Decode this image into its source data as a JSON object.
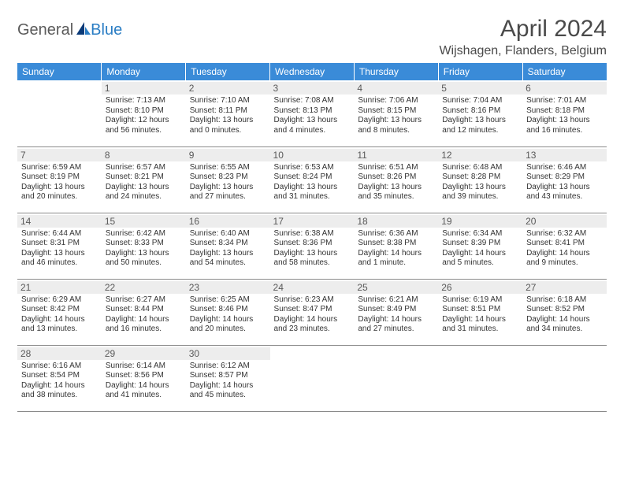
{
  "brand": {
    "part1": "General",
    "part2": "Blue"
  },
  "header": {
    "month": "April 2024",
    "location": "Wijshagen, Flanders, Belgium"
  },
  "colors": {
    "header_bg": "#3a8bd8",
    "header_text": "#ffffff",
    "daynum_bg": "#ededed",
    "daynum_text": "#595959",
    "body_text": "#333333",
    "rule": "#8a8a8a",
    "logo_gray": "#5a5a5a",
    "logo_blue": "#2a7dc4"
  },
  "weekday_labels": [
    "Sunday",
    "Monday",
    "Tuesday",
    "Wednesday",
    "Thursday",
    "Friday",
    "Saturday"
  ],
  "weeks": [
    [
      {
        "n": "",
        "empty": true
      },
      {
        "n": "1",
        "sr": "Sunrise: 7:13 AM",
        "ss": "Sunset: 8:10 PM",
        "d1": "Daylight: 12 hours",
        "d2": "and 56 minutes."
      },
      {
        "n": "2",
        "sr": "Sunrise: 7:10 AM",
        "ss": "Sunset: 8:11 PM",
        "d1": "Daylight: 13 hours",
        "d2": "and 0 minutes."
      },
      {
        "n": "3",
        "sr": "Sunrise: 7:08 AM",
        "ss": "Sunset: 8:13 PM",
        "d1": "Daylight: 13 hours",
        "d2": "and 4 minutes."
      },
      {
        "n": "4",
        "sr": "Sunrise: 7:06 AM",
        "ss": "Sunset: 8:15 PM",
        "d1": "Daylight: 13 hours",
        "d2": "and 8 minutes."
      },
      {
        "n": "5",
        "sr": "Sunrise: 7:04 AM",
        "ss": "Sunset: 8:16 PM",
        "d1": "Daylight: 13 hours",
        "d2": "and 12 minutes."
      },
      {
        "n": "6",
        "sr": "Sunrise: 7:01 AM",
        "ss": "Sunset: 8:18 PM",
        "d1": "Daylight: 13 hours",
        "d2": "and 16 minutes."
      }
    ],
    [
      {
        "n": "7",
        "sr": "Sunrise: 6:59 AM",
        "ss": "Sunset: 8:19 PM",
        "d1": "Daylight: 13 hours",
        "d2": "and 20 minutes."
      },
      {
        "n": "8",
        "sr": "Sunrise: 6:57 AM",
        "ss": "Sunset: 8:21 PM",
        "d1": "Daylight: 13 hours",
        "d2": "and 24 minutes."
      },
      {
        "n": "9",
        "sr": "Sunrise: 6:55 AM",
        "ss": "Sunset: 8:23 PM",
        "d1": "Daylight: 13 hours",
        "d2": "and 27 minutes."
      },
      {
        "n": "10",
        "sr": "Sunrise: 6:53 AM",
        "ss": "Sunset: 8:24 PM",
        "d1": "Daylight: 13 hours",
        "d2": "and 31 minutes."
      },
      {
        "n": "11",
        "sr": "Sunrise: 6:51 AM",
        "ss": "Sunset: 8:26 PM",
        "d1": "Daylight: 13 hours",
        "d2": "and 35 minutes."
      },
      {
        "n": "12",
        "sr": "Sunrise: 6:48 AM",
        "ss": "Sunset: 8:28 PM",
        "d1": "Daylight: 13 hours",
        "d2": "and 39 minutes."
      },
      {
        "n": "13",
        "sr": "Sunrise: 6:46 AM",
        "ss": "Sunset: 8:29 PM",
        "d1": "Daylight: 13 hours",
        "d2": "and 43 minutes."
      }
    ],
    [
      {
        "n": "14",
        "sr": "Sunrise: 6:44 AM",
        "ss": "Sunset: 8:31 PM",
        "d1": "Daylight: 13 hours",
        "d2": "and 46 minutes."
      },
      {
        "n": "15",
        "sr": "Sunrise: 6:42 AM",
        "ss": "Sunset: 8:33 PM",
        "d1": "Daylight: 13 hours",
        "d2": "and 50 minutes."
      },
      {
        "n": "16",
        "sr": "Sunrise: 6:40 AM",
        "ss": "Sunset: 8:34 PM",
        "d1": "Daylight: 13 hours",
        "d2": "and 54 minutes."
      },
      {
        "n": "17",
        "sr": "Sunrise: 6:38 AM",
        "ss": "Sunset: 8:36 PM",
        "d1": "Daylight: 13 hours",
        "d2": "and 58 minutes."
      },
      {
        "n": "18",
        "sr": "Sunrise: 6:36 AM",
        "ss": "Sunset: 8:38 PM",
        "d1": "Daylight: 14 hours",
        "d2": "and 1 minute."
      },
      {
        "n": "19",
        "sr": "Sunrise: 6:34 AM",
        "ss": "Sunset: 8:39 PM",
        "d1": "Daylight: 14 hours",
        "d2": "and 5 minutes."
      },
      {
        "n": "20",
        "sr": "Sunrise: 6:32 AM",
        "ss": "Sunset: 8:41 PM",
        "d1": "Daylight: 14 hours",
        "d2": "and 9 minutes."
      }
    ],
    [
      {
        "n": "21",
        "sr": "Sunrise: 6:29 AM",
        "ss": "Sunset: 8:42 PM",
        "d1": "Daylight: 14 hours",
        "d2": "and 13 minutes."
      },
      {
        "n": "22",
        "sr": "Sunrise: 6:27 AM",
        "ss": "Sunset: 8:44 PM",
        "d1": "Daylight: 14 hours",
        "d2": "and 16 minutes."
      },
      {
        "n": "23",
        "sr": "Sunrise: 6:25 AM",
        "ss": "Sunset: 8:46 PM",
        "d1": "Daylight: 14 hours",
        "d2": "and 20 minutes."
      },
      {
        "n": "24",
        "sr": "Sunrise: 6:23 AM",
        "ss": "Sunset: 8:47 PM",
        "d1": "Daylight: 14 hours",
        "d2": "and 23 minutes."
      },
      {
        "n": "25",
        "sr": "Sunrise: 6:21 AM",
        "ss": "Sunset: 8:49 PM",
        "d1": "Daylight: 14 hours",
        "d2": "and 27 minutes."
      },
      {
        "n": "26",
        "sr": "Sunrise: 6:19 AM",
        "ss": "Sunset: 8:51 PM",
        "d1": "Daylight: 14 hours",
        "d2": "and 31 minutes."
      },
      {
        "n": "27",
        "sr": "Sunrise: 6:18 AM",
        "ss": "Sunset: 8:52 PM",
        "d1": "Daylight: 14 hours",
        "d2": "and 34 minutes."
      }
    ],
    [
      {
        "n": "28",
        "sr": "Sunrise: 6:16 AM",
        "ss": "Sunset: 8:54 PM",
        "d1": "Daylight: 14 hours",
        "d2": "and 38 minutes."
      },
      {
        "n": "29",
        "sr": "Sunrise: 6:14 AM",
        "ss": "Sunset: 8:56 PM",
        "d1": "Daylight: 14 hours",
        "d2": "and 41 minutes."
      },
      {
        "n": "30",
        "sr": "Sunrise: 6:12 AM",
        "ss": "Sunset: 8:57 PM",
        "d1": "Daylight: 14 hours",
        "d2": "and 45 minutes."
      },
      {
        "n": "",
        "empty": true
      },
      {
        "n": "",
        "empty": true
      },
      {
        "n": "",
        "empty": true
      },
      {
        "n": "",
        "empty": true
      }
    ]
  ]
}
